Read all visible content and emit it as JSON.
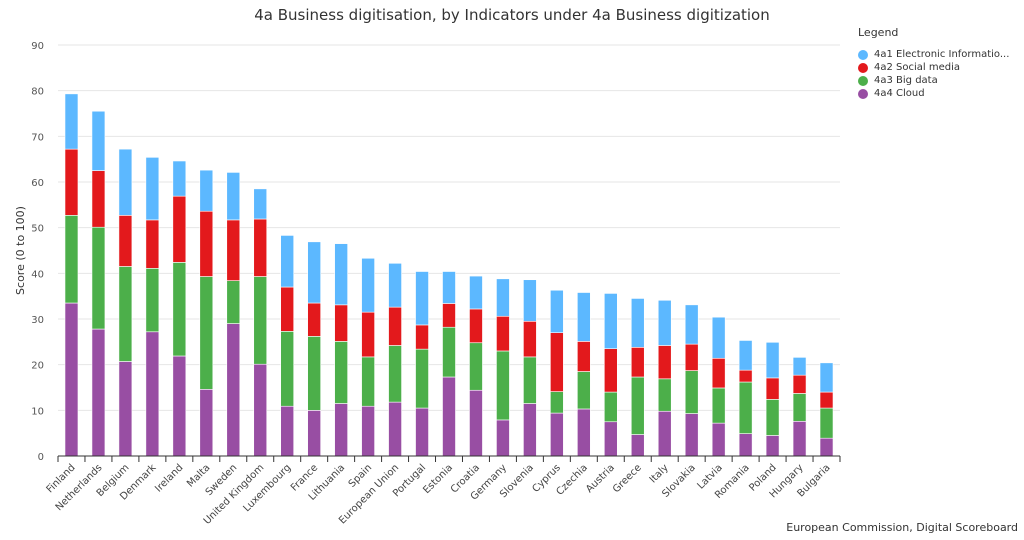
{
  "chart_data": {
    "type": "bar",
    "stacked": true,
    "title": "4a Business digitisation, by Indicators under 4a Business digitization",
    "ylabel": "Score (0 to 100)",
    "xlabel": "",
    "ylim": [
      0,
      90
    ],
    "yticks": [
      0,
      10,
      20,
      30,
      40,
      50,
      60,
      70,
      80,
      90
    ],
    "grid": true,
    "legend_title": "Legend",
    "legend_position": "top-right",
    "credit": "European Commission, Digital Scoreboard",
    "categories": [
      "Finland",
      "Netherlands",
      "Belgium",
      "Denmark",
      "Ireland",
      "Malta",
      "Sweden",
      "United Kingdom",
      "Luxembourg",
      "France",
      "Lithuania",
      "Spain",
      "European Union",
      "Portugal",
      "Estonia",
      "Croatia",
      "Germany",
      "Slovenia",
      "Cyprus",
      "Czechia",
      "Austria",
      "Greece",
      "Italy",
      "Slovakia",
      "Latvia",
      "Romania",
      "Poland",
      "Hungary",
      "Bulgaria"
    ],
    "series": [
      {
        "name": "4a1 Electronic Informatio...",
        "color": "#5cb8ff",
        "values": [
          12.1,
          13.0,
          14.5,
          13.7,
          7.7,
          9.0,
          10.4,
          6.6,
          11.3,
          13.4,
          13.4,
          11.8,
          9.6,
          11.7,
          7.0,
          7.2,
          8.2,
          9.1,
          9.3,
          10.7,
          12.1,
          10.7,
          9.9,
          8.6,
          9.0,
          6.5,
          7.8,
          3.9,
          6.4
        ]
      },
      {
        "name": "4a2 Social media",
        "color": "#e3191c",
        "values": [
          14.5,
          12.4,
          11.2,
          10.6,
          14.5,
          14.3,
          13.3,
          12.6,
          9.7,
          7.3,
          8.0,
          9.8,
          8.4,
          5.3,
          5.2,
          7.4,
          7.6,
          7.8,
          12.9,
          6.6,
          9.5,
          6.5,
          7.3,
          5.8,
          6.5,
          2.6,
          4.7,
          4.0,
          3.5
        ]
      },
      {
        "name": "4a3 Big data",
        "color": "#4caf4a",
        "values": [
          19.2,
          22.3,
          20.8,
          13.9,
          20.5,
          24.7,
          9.4,
          19.2,
          16.4,
          16.2,
          13.6,
          10.8,
          12.4,
          12.9,
          10.9,
          10.4,
          15.1,
          10.2,
          4.7,
          8.2,
          6.5,
          12.6,
          7.1,
          9.4,
          7.7,
          11.3,
          7.9,
          6.1,
          6.6
        ]
      },
      {
        "name": "4a4 Cloud",
        "color": "#984ea3",
        "values": [
          33.5,
          27.8,
          20.7,
          27.2,
          21.9,
          14.6,
          29.0,
          20.1,
          10.9,
          10.0,
          11.5,
          10.9,
          11.8,
          10.5,
          17.3,
          14.4,
          7.9,
          11.5,
          9.4,
          10.3,
          7.5,
          4.7,
          9.8,
          9.3,
          7.2,
          4.9,
          4.5,
          7.6,
          3.9
        ]
      }
    ]
  }
}
